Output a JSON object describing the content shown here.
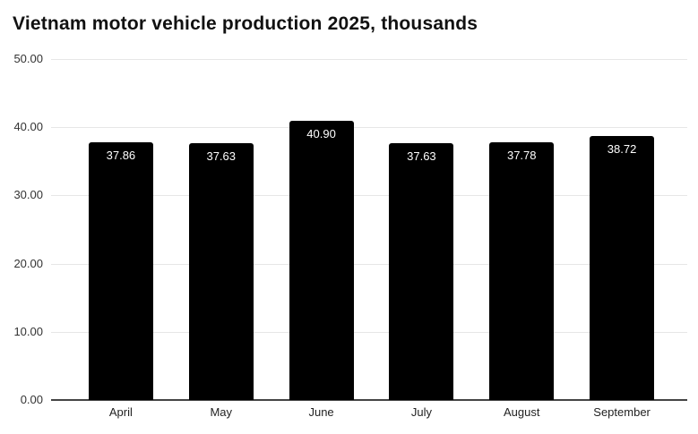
{
  "page": {
    "background": "#ffffff"
  },
  "chart_data": {
    "type": "bar",
    "title": "Vietnam motor vehicle production 2025, thousands",
    "categories": [
      "April",
      "May",
      "June",
      "July",
      "August",
      "September"
    ],
    "values": [
      37.86,
      37.63,
      40.9,
      37.63,
      37.78,
      38.72
    ],
    "value_labels": [
      "37.86",
      "37.63",
      "40.90",
      "37.63",
      "37.78",
      "38.72"
    ],
    "xlabel": "",
    "ylabel": "",
    "ylim": [
      0,
      50
    ],
    "yticks": [
      0,
      10,
      20,
      30,
      40,
      50
    ],
    "ytick_labels": [
      "0.00",
      "10.00",
      "20.00",
      "30.00",
      "40.00",
      "50.00"
    ],
    "grid": true,
    "legend": false,
    "colors": {
      "bar": "#000000",
      "bar_label": "#ffffff",
      "gridline": "#e6e6e6",
      "axis_line": "#444444",
      "tick_text": "#333333",
      "title": "#111111",
      "background": "#ffffff"
    }
  }
}
